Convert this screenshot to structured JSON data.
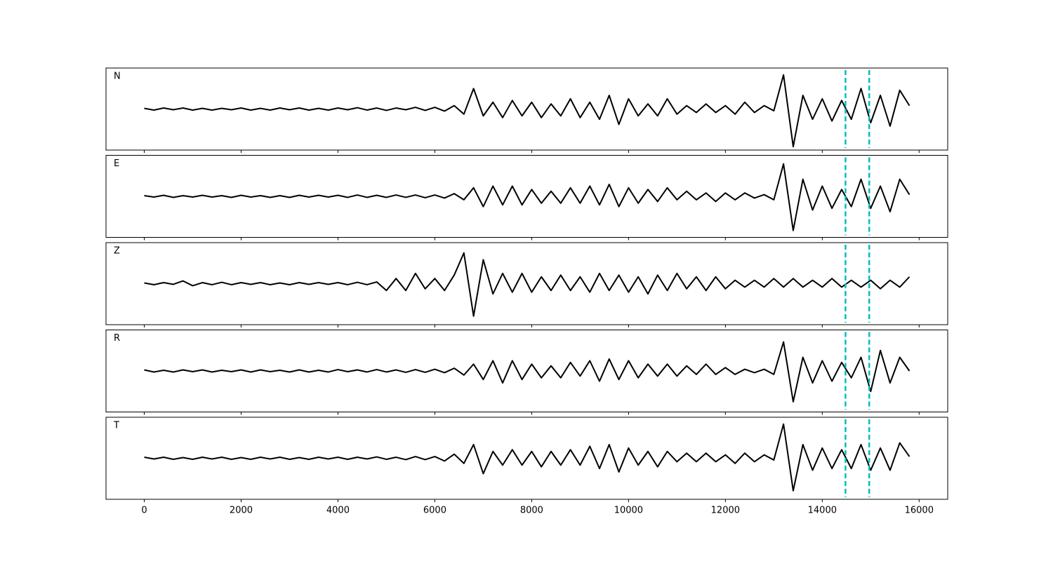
{
  "chart_data": [
    {
      "type": "line",
      "label": "N",
      "x": [
        0,
        200,
        400,
        600,
        800,
        1000,
        1200,
        1400,
        1600,
        1800,
        2000,
        2200,
        2400,
        2600,
        2800,
        3000,
        3200,
        3400,
        3600,
        3800,
        4000,
        4200,
        4400,
        4600,
        4800,
        5000,
        5200,
        5400,
        5600,
        5800,
        6000,
        6200,
        6400,
        6600,
        6800,
        7000,
        7200,
        7400,
        7600,
        7800,
        8000,
        8200,
        8400,
        8600,
        8800,
        9000,
        9200,
        9400,
        9600,
        9800,
        10000,
        10200,
        10400,
        10600,
        10800,
        11000,
        11200,
        11400,
        11600,
        11800,
        12000,
        12200,
        12400,
        12600,
        12800,
        13000,
        13200,
        13400,
        13600,
        13800,
        14000,
        14200,
        14400,
        14600,
        14800,
        15000,
        15200,
        15400,
        15600,
        15800
      ],
      "series": [
        {
          "color": "#000000",
          "values": [
            0.02,
            -0.03,
            0.03,
            -0.02,
            0.03,
            -0.03,
            0.02,
            -0.03,
            0.02,
            -0.02,
            0.03,
            -0.03,
            0.02,
            -0.03,
            0.03,
            -0.02,
            0.03,
            -0.03,
            0.02,
            -0.03,
            0.03,
            -0.02,
            0.04,
            -0.03,
            0.03,
            -0.04,
            0.03,
            -0.02,
            0.05,
            -0.04,
            0.05,
            -0.06,
            0.1,
            -0.15,
            0.6,
            -0.2,
            0.2,
            -0.25,
            0.25,
            -0.2,
            0.2,
            -0.25,
            0.15,
            -0.2,
            0.3,
            -0.25,
            0.2,
            -0.3,
            0.4,
            -0.45,
            0.3,
            -0.2,
            0.15,
            -0.2,
            0.3,
            -0.15,
            0.1,
            -0.1,
            0.15,
            -0.1,
            0.1,
            -0.15,
            0.2,
            -0.1,
            0.1,
            -0.05,
            1.0,
            -1.1,
            0.4,
            -0.3,
            0.3,
            -0.35,
            0.25,
            -0.3,
            0.6,
            -0.4,
            0.4,
            -0.5,
            0.55,
            0.1
          ]
        }
      ],
      "xlim": [
        -790,
        16590
      ],
      "ylim": [
        -1.2,
        1.2
      ],
      "xticks": [
        0,
        2000,
        4000,
        6000,
        8000,
        10000,
        12000,
        14000,
        16000
      ],
      "vlines": [
        14480,
        14970
      ],
      "vline_color": "#00bfbf"
    },
    {
      "type": "line",
      "label": "E",
      "x": [
        0,
        200,
        400,
        600,
        800,
        1000,
        1200,
        1400,
        1600,
        1800,
        2000,
        2200,
        2400,
        2600,
        2800,
        3000,
        3200,
        3400,
        3600,
        3800,
        4000,
        4200,
        4400,
        4600,
        4800,
        5000,
        5200,
        5400,
        5600,
        5800,
        6000,
        6200,
        6400,
        6600,
        6800,
        7000,
        7200,
        7400,
        7600,
        7800,
        8000,
        8200,
        8400,
        8600,
        8800,
        9000,
        9200,
        9400,
        9600,
        9800,
        10000,
        10200,
        10400,
        10600,
        10800,
        11000,
        11200,
        11400,
        11600,
        11800,
        12000,
        12200,
        12400,
        12600,
        12800,
        13000,
        13200,
        13400,
        13600,
        13800,
        14000,
        14200,
        14400,
        14600,
        14800,
        15000,
        15200,
        15400,
        15600,
        15800
      ],
      "series": [
        {
          "color": "#000000",
          "values": [
            0.02,
            -0.02,
            0.03,
            -0.03,
            0.02,
            -0.02,
            0.03,
            -0.02,
            0.02,
            -0.03,
            0.03,
            -0.02,
            0.02,
            -0.03,
            0.02,
            -0.03,
            0.03,
            -0.02,
            0.03,
            -0.02,
            0.03,
            -0.03,
            0.04,
            -0.03,
            0.03,
            -0.03,
            0.04,
            -0.03,
            0.04,
            -0.04,
            0.04,
            -0.05,
            0.08,
            -0.1,
            0.25,
            -0.3,
            0.3,
            -0.25,
            0.3,
            -0.25,
            0.2,
            -0.2,
            0.15,
            -0.2,
            0.25,
            -0.2,
            0.3,
            -0.25,
            0.35,
            -0.3,
            0.25,
            -0.2,
            0.2,
            -0.15,
            0.25,
            -0.1,
            0.15,
            -0.1,
            0.1,
            -0.15,
            0.1,
            -0.1,
            0.1,
            -0.05,
            0.05,
            -0.1,
            0.95,
            -1.0,
            0.5,
            -0.4,
            0.3,
            -0.35,
            0.2,
            -0.3,
            0.5,
            -0.35,
            0.3,
            -0.45,
            0.5,
            0.05
          ]
        }
      ],
      "xlim": [
        -790,
        16590
      ],
      "ylim": [
        -1.2,
        1.2
      ],
      "xticks": [
        0,
        2000,
        4000,
        6000,
        8000,
        10000,
        12000,
        14000,
        16000
      ],
      "vlines": [
        14480,
        14970
      ],
      "vline_color": "#00bfbf"
    },
    {
      "type": "line",
      "label": "Z",
      "x": [
        0,
        200,
        400,
        600,
        800,
        1000,
        1200,
        1400,
        1600,
        1800,
        2000,
        2200,
        2400,
        2600,
        2800,
        3000,
        3200,
        3400,
        3600,
        3800,
        4000,
        4200,
        4400,
        4600,
        4800,
        5000,
        5200,
        5400,
        5600,
        5800,
        6000,
        6200,
        6400,
        6600,
        6800,
        7000,
        7200,
        7400,
        7600,
        7800,
        8000,
        8200,
        8400,
        8600,
        8800,
        9000,
        9200,
        9400,
        9600,
        9800,
        10000,
        10200,
        10400,
        10600,
        10800,
        11000,
        11200,
        11400,
        11600,
        11800,
        12000,
        12200,
        12400,
        12600,
        12800,
        13000,
        13200,
        13400,
        13600,
        13800,
        14000,
        14200,
        14400,
        14600,
        14800,
        15000,
        15200,
        15400,
        15600,
        15800
      ],
      "series": [
        {
          "color": "#000000",
          "values": [
            0.02,
            -0.03,
            0.03,
            -0.02,
            0.08,
            -0.06,
            0.03,
            -0.03,
            0.04,
            -0.03,
            0.03,
            -0.02,
            0.03,
            -0.03,
            0.02,
            -0.03,
            0.03,
            -0.02,
            0.03,
            -0.02,
            0.03,
            -0.03,
            0.04,
            -0.03,
            0.05,
            -0.2,
            0.15,
            -0.2,
            0.3,
            -0.15,
            0.15,
            -0.2,
            0.25,
            0.9,
            -0.95,
            0.7,
            -0.3,
            0.3,
            -0.25,
            0.3,
            -0.25,
            0.2,
            -0.2,
            0.25,
            -0.2,
            0.2,
            -0.25,
            0.3,
            -0.2,
            0.25,
            -0.25,
            0.2,
            -0.3,
            0.25,
            -0.2,
            0.3,
            -0.15,
            0.2,
            -0.2,
            0.2,
            -0.15,
            0.1,
            -0.1,
            0.1,
            -0.1,
            0.15,
            -0.1,
            0.15,
            -0.1,
            0.1,
            -0.1,
            0.15,
            -0.1,
            0.1,
            -0.1,
            0.1,
            -0.15,
            0.1,
            -0.1,
            0.2
          ]
        }
      ],
      "xlim": [
        -790,
        16590
      ],
      "ylim": [
        -1.2,
        1.2
      ],
      "xticks": [
        0,
        2000,
        4000,
        6000,
        8000,
        10000,
        12000,
        14000,
        16000
      ],
      "vlines": [
        14480,
        14970
      ],
      "vline_color": "#00bfbf"
    },
    {
      "type": "line",
      "label": "R",
      "x": [
        0,
        200,
        400,
        600,
        800,
        1000,
        1200,
        1400,
        1600,
        1800,
        2000,
        2200,
        2400,
        2600,
        2800,
        3000,
        3200,
        3400,
        3600,
        3800,
        4000,
        4200,
        4400,
        4600,
        4800,
        5000,
        5200,
        5400,
        5600,
        5800,
        6000,
        6200,
        6400,
        6600,
        6800,
        7000,
        7200,
        7400,
        7600,
        7800,
        8000,
        8200,
        8400,
        8600,
        8800,
        9000,
        9200,
        9400,
        9600,
        9800,
        10000,
        10200,
        10400,
        10600,
        10800,
        11000,
        11200,
        11400,
        11600,
        11800,
        12000,
        12200,
        12400,
        12600,
        12800,
        13000,
        13200,
        13400,
        13600,
        13800,
        14000,
        14200,
        14400,
        14600,
        14800,
        15000,
        15200,
        15400,
        15600,
        15800
      ],
      "series": [
        {
          "color": "#000000",
          "values": [
            0.03,
            -0.03,
            0.02,
            -0.03,
            0.03,
            -0.02,
            0.03,
            -0.03,
            0.02,
            -0.02,
            0.03,
            -0.03,
            0.03,
            -0.02,
            0.02,
            -0.03,
            0.03,
            -0.03,
            0.02,
            -0.03,
            0.04,
            -0.02,
            0.03,
            -0.03,
            0.04,
            -0.03,
            0.03,
            -0.04,
            0.04,
            -0.04,
            0.05,
            -0.05,
            0.08,
            -0.12,
            0.2,
            -0.25,
            0.3,
            -0.35,
            0.3,
            -0.25,
            0.2,
            -0.2,
            0.15,
            -0.2,
            0.25,
            -0.15,
            0.3,
            -0.3,
            0.35,
            -0.25,
            0.3,
            -0.2,
            0.2,
            -0.15,
            0.2,
            -0.15,
            0.15,
            -0.1,
            0.2,
            -0.1,
            0.1,
            -0.1,
            0.05,
            -0.05,
            0.05,
            -0.1,
            0.85,
            -0.9,
            0.4,
            -0.35,
            0.3,
            -0.3,
            0.25,
            -0.2,
            0.4,
            -0.6,
            0.6,
            -0.35,
            0.4,
            0.0
          ]
        }
      ],
      "xlim": [
        -790,
        16590
      ],
      "ylim": [
        -1.2,
        1.2
      ],
      "xticks": [
        0,
        2000,
        4000,
        6000,
        8000,
        10000,
        12000,
        14000,
        16000
      ],
      "vlines": [
        14480,
        14970
      ],
      "vline_color": "#00bfbf"
    },
    {
      "type": "line",
      "label": "T",
      "x": [
        0,
        200,
        400,
        600,
        800,
        1000,
        1200,
        1400,
        1600,
        1800,
        2000,
        2200,
        2400,
        2600,
        2800,
        3000,
        3200,
        3400,
        3600,
        3800,
        4000,
        4200,
        4400,
        4600,
        4800,
        5000,
        5200,
        5400,
        5600,
        5800,
        6000,
        6200,
        6400,
        6600,
        6800,
        7000,
        7200,
        7400,
        7600,
        7800,
        8000,
        8200,
        8400,
        8600,
        8800,
        9000,
        9200,
        9400,
        9600,
        9800,
        10000,
        10200,
        10400,
        10600,
        10800,
        11000,
        11200,
        11400,
        11600,
        11800,
        12000,
        12200,
        12400,
        12600,
        12800,
        13000,
        13200,
        13400,
        13600,
        13800,
        14000,
        14200,
        14400,
        14600,
        14800,
        15000,
        15200,
        15400,
        15600,
        15800
      ],
      "series": [
        {
          "color": "#000000",
          "values": [
            0.03,
            -0.02,
            0.03,
            -0.03,
            0.02,
            -0.03,
            0.03,
            -0.02,
            0.03,
            -0.03,
            0.02,
            -0.03,
            0.03,
            -0.02,
            0.03,
            -0.03,
            0.02,
            -0.03,
            0.03,
            -0.02,
            0.03,
            -0.03,
            0.03,
            -0.02,
            0.04,
            -0.03,
            0.03,
            -0.04,
            0.05,
            -0.04,
            0.05,
            -0.08,
            0.12,
            -0.15,
            0.4,
            -0.45,
            0.2,
            -0.2,
            0.25,
            -0.2,
            0.2,
            -0.25,
            0.2,
            -0.2,
            0.25,
            -0.2,
            0.35,
            -0.3,
            0.4,
            -0.4,
            0.3,
            -0.2,
            0.2,
            -0.25,
            0.2,
            -0.1,
            0.15,
            -0.1,
            0.15,
            -0.1,
            0.1,
            -0.15,
            0.15,
            -0.1,
            0.1,
            -0.05,
            1.0,
            -0.95,
            0.4,
            -0.35,
            0.3,
            -0.3,
            0.25,
            -0.3,
            0.4,
            -0.35,
            0.3,
            -0.35,
            0.45,
            0.05
          ]
        }
      ],
      "xlim": [
        -790,
        16590
      ],
      "ylim": [
        -1.2,
        1.2
      ],
      "xticks": [
        0,
        2000,
        4000,
        6000,
        8000,
        10000,
        12000,
        14000,
        16000
      ],
      "vlines": [
        14480,
        14970
      ],
      "vline_color": "#00bfbf"
    }
  ]
}
